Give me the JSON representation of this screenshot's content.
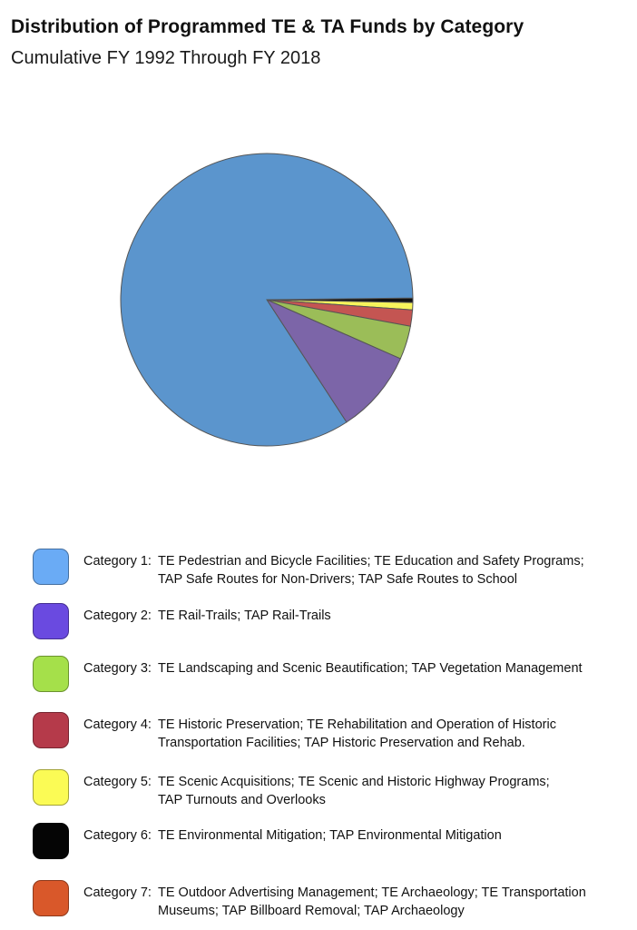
{
  "chart_data": {
    "type": "pie",
    "title": "Distribution of Programmed TE & TA Funds by Category",
    "subtitle": "Cumulative FY 1992 Through FY 2018",
    "series": [
      {
        "name": "Category 1",
        "value": 84.0,
        "color": "#5b95cd"
      },
      {
        "name": "Category 2",
        "value": 9.2,
        "color": "#7c65a8"
      },
      {
        "name": "Category 3",
        "value": 3.7,
        "color": "#9bbd58"
      },
      {
        "name": "Category 4",
        "value": 1.8,
        "color": "#c45552"
      },
      {
        "name": "Category 5",
        "value": 0.8,
        "color": "#f7f45c"
      },
      {
        "name": "Category 6",
        "value": 0.5,
        "color": "#111111"
      }
    ]
  },
  "legend": [
    {
      "label": "Category 1:",
      "line1": "TE Pedestrian and Bicycle Facilities; TE Education and Safety Programs;",
      "line2": "TAP Safe Routes for Non-Drivers; TAP Safe Routes to School",
      "color": "#6aabf5"
    },
    {
      "label": "Category 2:",
      "line1": "TE Rail-Trails; TAP Rail-Trails",
      "line2": "",
      "color": "#6a4ae0"
    },
    {
      "label": "Category 3:",
      "line1": "TE Landscaping and Scenic Beautification; TAP Vegetation Management",
      "line2": "",
      "color": "#a5e04a"
    },
    {
      "label": "Category 4:",
      "line1": "TE Historic Preservation; TE Rehabilitation and Operation of Historic",
      "line2": "Transportation Facilities; TAP Historic Preservation and Rehab.",
      "color": "#b53a4a"
    },
    {
      "label": "Category 5:",
      "line1": "TE Scenic Acquisitions; TE Scenic and Historic Highway Programs;",
      "line2": "TAP Turnouts and Overlooks",
      "color": "#fbfb55"
    },
    {
      "label": "Category 6:",
      "line1": "TE Environmental Mitigation; TAP Environmental Mitigation",
      "line2": "",
      "color": "#050505"
    },
    {
      "label": "Category 7:",
      "line1": "TE Outdoor Advertising Management; TE Archaeology; TE Transportation",
      "line2": "Museums; TAP Billboard Removal; TAP Archaeology",
      "color": "#d9582a"
    }
  ]
}
